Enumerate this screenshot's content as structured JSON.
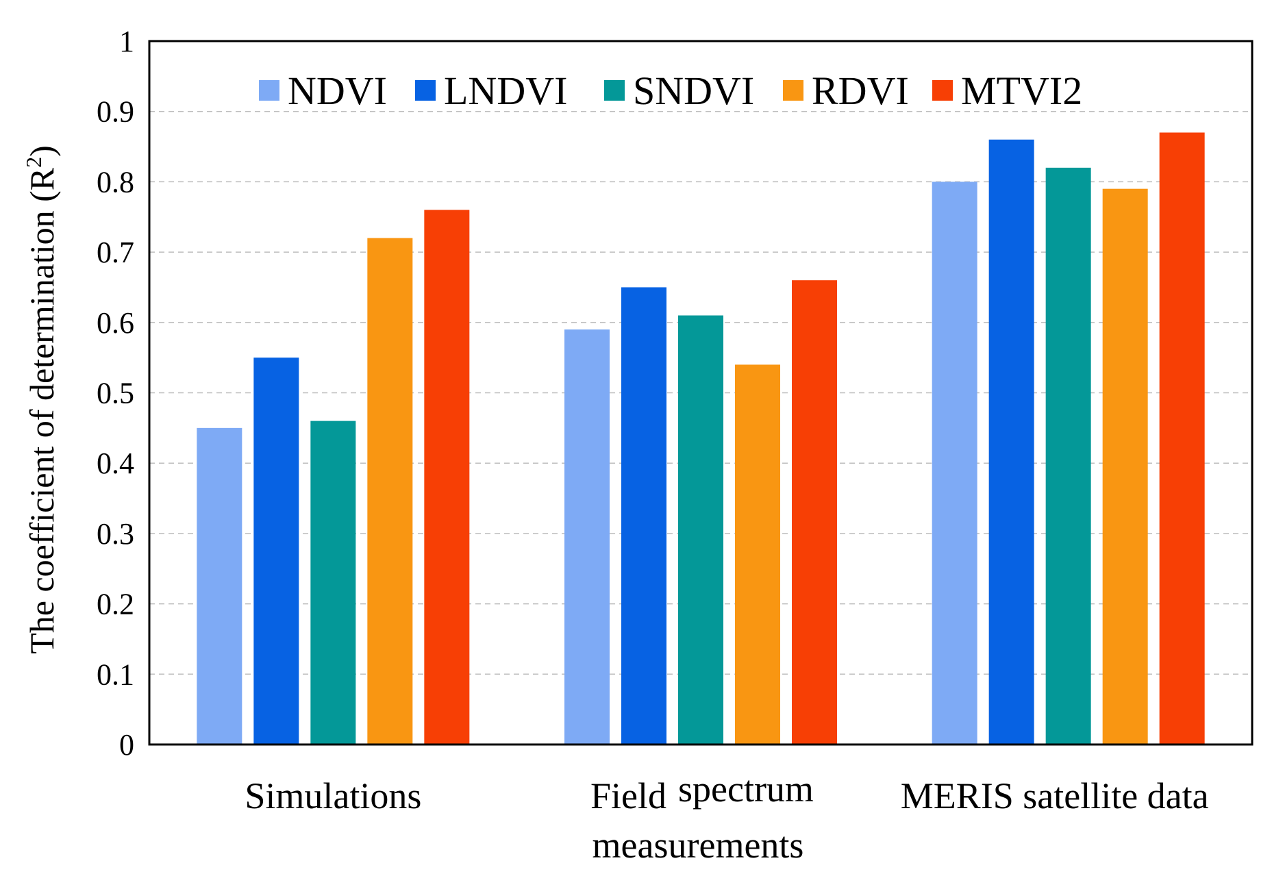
{
  "chart_data": {
    "type": "bar",
    "categories": [
      "Simulations",
      "Field spectrum measurements",
      "MERIS satellite data"
    ],
    "category_labels": [
      {
        "line1": "Simulations"
      },
      {
        "line1a": "Field",
        "line1b": "spectrum",
        "line2": "measurements"
      },
      {
        "line1": "MERIS satellite data"
      }
    ],
    "series": [
      {
        "name": "NDVI",
        "color": "#7eaaf5",
        "values": [
          0.45,
          0.59,
          0.8
        ]
      },
      {
        "name": "LNDVI",
        "color": "#0762e3",
        "values": [
          0.55,
          0.65,
          0.86
        ]
      },
      {
        "name": "SNDVI",
        "color": "#049898",
        "values": [
          0.46,
          0.61,
          0.82
        ]
      },
      {
        "name": "RDVI",
        "color": "#f99612",
        "values": [
          0.72,
          0.54,
          0.79
        ]
      },
      {
        "name": "MTVI2",
        "color": "#f73f05",
        "values": [
          0.76,
          0.66,
          0.87
        ]
      }
    ],
    "title": "",
    "xlabel": "",
    "ylabel": "The coefficient of determination (R",
    "ylabel_superscript": "2",
    "ylabel_suffix": ")",
    "ylim": [
      0,
      1
    ],
    "yticks": [
      "0",
      "0.1",
      "0.2",
      "0.3",
      "0.4",
      "0.5",
      "0.6",
      "0.7",
      "0.8",
      "0.9",
      "1"
    ],
    "grid": true,
    "legend_position": "top"
  }
}
